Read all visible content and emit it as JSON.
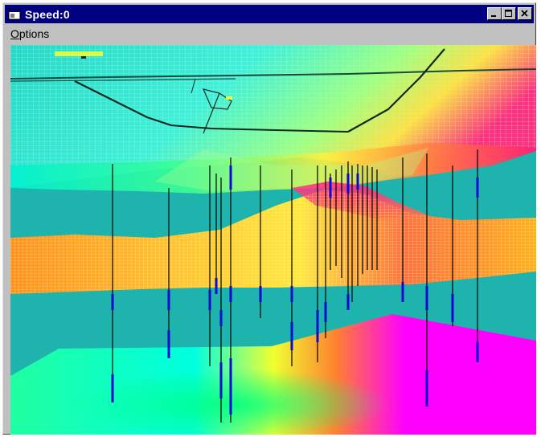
{
  "window": {
    "title": "Speed:0",
    "icon": "app-window-icon",
    "controls": {
      "minimize_icon": "minimize-icon",
      "maximize_icon": "maximize-icon",
      "close_icon": "close-icon"
    }
  },
  "menu": {
    "items": [
      {
        "label": "Options",
        "mnemonic": "O",
        "rest": "ptions"
      }
    ]
  },
  "viewport": {
    "description_type": "3d-surface-visualization",
    "colors": {
      "background": "#1fb3ad",
      "wireframe_top": "#3ff2d8",
      "wireframe_mid": "#f0f060",
      "surface_low": "#ff00ff",
      "surface_high": "#00ffc0",
      "well_stick": "#000000",
      "well_marker": "#0a0ad0"
    }
  },
  "colors": {
    "titlebar": "#000080",
    "window_face": "#c0c0c0",
    "title_text": "#ffffff"
  }
}
